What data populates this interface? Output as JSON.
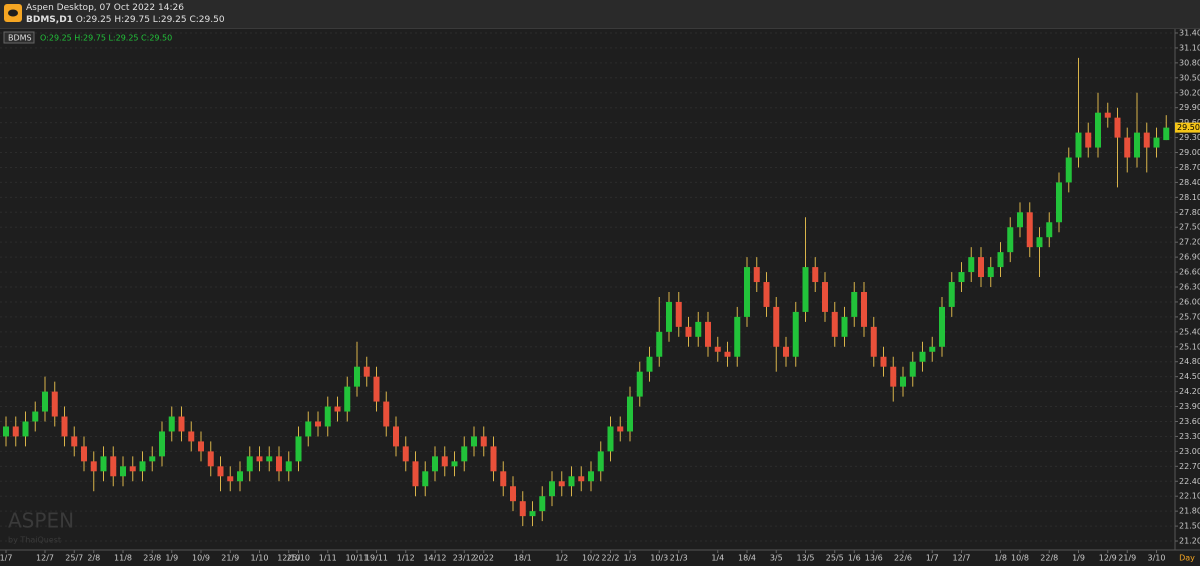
{
  "header": {
    "title": "Aspen Desktop, 07 Oct 2022 14:26",
    "symbol": "BDMS,D1",
    "ohlc": "O:29.25 H:29.75 L:29.25 C:29.50"
  },
  "chart_data": {
    "type": "candlestick",
    "legend": {
      "symbol": "BDMS",
      "ohlc": "O:29.25 H:29.75 L:29.25 C:29.50"
    },
    "watermark": [
      "ASPEN",
      "by ThaiQuest"
    ],
    "x_unit": "Day",
    "up_color": "#22c33a",
    "down_color": "#e9503a",
    "wick_color": "#d9b44a",
    "grid": true,
    "last_price": {
      "value": 29.5,
      "label": "29.50"
    },
    "categories": [
      "1/7",
      null,
      null,
      null,
      "12/7",
      null,
      null,
      "25/7",
      null,
      "2/8",
      null,
      null,
      "11/8",
      null,
      null,
      "23/8",
      null,
      "1/9",
      null,
      null,
      "10/9",
      null,
      null,
      "21/9",
      null,
      null,
      "1/10",
      null,
      null,
      "12/10",
      "25/10",
      null,
      null,
      "1/11",
      null,
      null,
      "10/11",
      null,
      "19/11",
      null,
      null,
      "1/12",
      null,
      null,
      "14/12",
      null,
      null,
      "23/12",
      null,
      "2022",
      null,
      null,
      null,
      "18/1",
      null,
      null,
      null,
      "1/2",
      null,
      null,
      "10/2",
      null,
      "22/2",
      null,
      "1/3",
      null,
      null,
      "10/3",
      null,
      "21/3",
      null,
      null,
      null,
      "1/4",
      null,
      null,
      "18/4",
      null,
      null,
      "3/5",
      null,
      null,
      "13/5",
      null,
      null,
      "25/5",
      null,
      "1/6",
      null,
      "13/6",
      null,
      null,
      "22/6",
      null,
      null,
      "1/7",
      null,
      null,
      "12/7",
      null,
      null,
      null,
      "1/8",
      null,
      "10/8",
      null,
      null,
      "22/8",
      null,
      null,
      "1/9",
      null,
      null,
      "12/9",
      null,
      "21/9",
      null,
      null,
      "3/10",
      null
    ],
    "open": [
      23.3,
      23.5,
      23.3,
      23.6,
      23.8,
      24.2,
      23.7,
      23.3,
      23.1,
      22.8,
      22.6,
      22.9,
      22.5,
      22.7,
      22.6,
      22.8,
      22.9,
      23.4,
      23.7,
      23.4,
      23.2,
      23.0,
      22.7,
      22.5,
      22.4,
      22.6,
      22.9,
      22.8,
      22.9,
      22.6,
      22.8,
      23.3,
      23.6,
      23.5,
      23.9,
      23.8,
      24.3,
      24.7,
      24.5,
      24.0,
      23.5,
      23.1,
      22.8,
      22.3,
      22.6,
      22.9,
      22.7,
      22.8,
      23.1,
      23.3,
      23.1,
      22.6,
      22.3,
      22.0,
      21.7,
      21.8,
      22.1,
      22.4,
      22.3,
      22.5,
      22.4,
      22.6,
      23.0,
      23.5,
      23.4,
      24.1,
      24.6,
      24.9,
      25.4,
      26.0,
      25.5,
      25.3,
      25.6,
      25.1,
      25.0,
      24.9,
      25.7,
      26.7,
      26.4,
      25.9,
      25.1,
      24.9,
      25.8,
      26.7,
      26.4,
      25.8,
      25.3,
      25.7,
      26.2,
      25.5,
      24.9,
      24.7,
      24.3,
      24.5,
      24.8,
      25.0,
      25.1,
      25.9,
      26.4,
      26.6,
      26.9,
      26.5,
      26.7,
      27.0,
      27.5,
      27.8,
      27.1,
      27.3,
      27.6,
      28.4,
      28.9,
      29.4,
      29.1,
      29.8,
      29.7,
      29.3,
      28.9,
      29.4,
      29.1,
      29.25
    ],
    "high": [
      23.7,
      23.7,
      23.8,
      24.0,
      24.5,
      24.4,
      23.9,
      23.5,
      23.3,
      23.0,
      23.1,
      23.1,
      22.9,
      22.9,
      23.0,
      23.1,
      23.6,
      23.9,
      23.9,
      23.6,
      23.4,
      23.2,
      22.9,
      22.7,
      22.8,
      23.1,
      23.1,
      23.1,
      23.1,
      23.0,
      23.5,
      23.8,
      23.8,
      24.1,
      24.1,
      24.5,
      25.2,
      24.9,
      24.7,
      24.2,
      23.7,
      23.3,
      23.0,
      22.8,
      23.1,
      23.1,
      23.0,
      23.3,
      23.5,
      23.5,
      23.3,
      22.8,
      22.5,
      22.2,
      22.0,
      22.3,
      22.6,
      22.6,
      22.7,
      22.7,
      22.8,
      23.2,
      23.7,
      23.7,
      24.3,
      24.8,
      25.1,
      26.1,
      26.2,
      26.2,
      25.7,
      25.8,
      25.8,
      25.3,
      25.2,
      25.9,
      26.9,
      26.9,
      26.6,
      26.1,
      25.3,
      26.0,
      27.7,
      26.9,
      26.6,
      26.0,
      25.9,
      26.4,
      26.4,
      25.7,
      25.1,
      24.9,
      24.7,
      25.0,
      25.2,
      25.3,
      26.1,
      26.6,
      26.8,
      27.1,
      27.1,
      26.9,
      27.2,
      27.7,
      28.0,
      28.0,
      27.5,
      27.8,
      28.6,
      29.1,
      30.9,
      29.6,
      30.2,
      30.0,
      29.9,
      29.5,
      30.2,
      29.6,
      29.5,
      29.75
    ],
    "low": [
      23.1,
      23.1,
      23.1,
      23.4,
      23.6,
      23.5,
      23.1,
      22.9,
      22.6,
      22.2,
      22.4,
      22.3,
      22.3,
      22.4,
      22.4,
      22.6,
      22.7,
      23.2,
      23.2,
      23.0,
      22.8,
      22.5,
      22.2,
      22.2,
      22.2,
      22.4,
      22.6,
      22.6,
      22.4,
      22.4,
      22.6,
      23.1,
      23.3,
      23.3,
      23.6,
      23.6,
      24.1,
      24.3,
      23.8,
      23.3,
      22.9,
      22.6,
      22.1,
      22.1,
      22.4,
      22.5,
      22.5,
      22.6,
      22.9,
      22.9,
      22.4,
      22.1,
      21.8,
      21.5,
      21.5,
      21.6,
      21.9,
      22.1,
      22.1,
      22.2,
      22.2,
      22.4,
      22.8,
      23.2,
      23.2,
      23.9,
      24.4,
      24.7,
      25.2,
      25.3,
      25.1,
      25.1,
      24.9,
      24.8,
      24.7,
      24.7,
      25.5,
      26.2,
      25.7,
      24.6,
      24.7,
      24.7,
      25.6,
      26.2,
      25.6,
      25.1,
      25.1,
      25.5,
      25.3,
      24.7,
      24.5,
      24.0,
      24.1,
      24.3,
      24.6,
      24.8,
      24.9,
      25.7,
      26.2,
      26.4,
      26.3,
      26.3,
      26.5,
      26.8,
      27.3,
      26.9,
      26.5,
      27.1,
      27.4,
      28.2,
      28.7,
      28.9,
      28.9,
      29.5,
      28.3,
      28.6,
      28.7,
      28.6,
      28.9,
      29.25
    ],
    "close": [
      23.5,
      23.3,
      23.6,
      23.8,
      24.2,
      23.7,
      23.3,
      23.1,
      22.8,
      22.6,
      22.9,
      22.5,
      22.7,
      22.6,
      22.8,
      22.9,
      23.4,
      23.7,
      23.4,
      23.2,
      23.0,
      22.7,
      22.5,
      22.4,
      22.6,
      22.9,
      22.8,
      22.9,
      22.6,
      22.8,
      23.3,
      23.6,
      23.5,
      23.9,
      23.8,
      24.3,
      24.7,
      24.5,
      24.0,
      23.5,
      23.1,
      22.8,
      22.3,
      22.6,
      22.9,
      22.7,
      22.8,
      23.1,
      23.3,
      23.1,
      22.6,
      22.3,
      22.0,
      21.7,
      21.8,
      22.1,
      22.4,
      22.3,
      22.5,
      22.4,
      22.6,
      23.0,
      23.5,
      23.4,
      24.1,
      24.6,
      24.9,
      25.4,
      26.0,
      25.5,
      25.3,
      25.6,
      25.1,
      25.0,
      24.9,
      25.7,
      26.7,
      26.4,
      25.9,
      25.1,
      24.9,
      25.8,
      26.7,
      26.4,
      25.8,
      25.3,
      25.7,
      26.2,
      25.5,
      24.9,
      24.7,
      24.3,
      24.5,
      24.8,
      25.0,
      25.1,
      25.9,
      26.4,
      26.6,
      26.9,
      26.5,
      26.7,
      27.0,
      27.5,
      27.8,
      27.1,
      27.3,
      27.6,
      28.4,
      28.9,
      29.4,
      29.1,
      29.8,
      29.7,
      29.3,
      28.9,
      29.4,
      29.1,
      29.3,
      29.5
    ],
    "ylim": [
      21.0,
      31.5
    ],
    "yticks": [
      {
        "value": 21.2,
        "label": "21.20"
      },
      {
        "value": 21.5,
        "label": "21.50"
      },
      {
        "value": 21.8,
        "label": "21.80"
      },
      {
        "value": 22.1,
        "label": "22.10"
      },
      {
        "value": 22.4,
        "label": "22.40"
      },
      {
        "value": 22.7,
        "label": "22.70"
      },
      {
        "value": 23.0,
        "label": "23.00"
      },
      {
        "value": 23.3,
        "label": "23.30"
      },
      {
        "value": 23.6,
        "label": "23.60"
      },
      {
        "value": 23.9,
        "label": "23.90"
      },
      {
        "value": 24.2,
        "label": "24.20"
      },
      {
        "value": 24.5,
        "label": "24.50"
      },
      {
        "value": 24.8,
        "label": "24.80"
      },
      {
        "value": 25.1,
        "label": "25.10"
      },
      {
        "value": 25.4,
        "label": "25.40"
      },
      {
        "value": 25.7,
        "label": "25.70"
      },
      {
        "value": 26.0,
        "label": "26.00"
      },
      {
        "value": 26.3,
        "label": "26.30"
      },
      {
        "value": 26.6,
        "label": "26.60"
      },
      {
        "value": 26.9,
        "label": "26.90"
      },
      {
        "value": 27.2,
        "label": "27.20"
      },
      {
        "value": 27.5,
        "label": "27.50"
      },
      {
        "value": 27.8,
        "label": "27.80"
      },
      {
        "value": 28.1,
        "label": "28.10"
      },
      {
        "value": 28.4,
        "label": "28.40"
      },
      {
        "value": 28.7,
        "label": "28.70"
      },
      {
        "value": 29.0,
        "label": "29.00"
      },
      {
        "value": 29.3,
        "label": "29.30"
      },
      {
        "value": 29.6,
        "label": "29.60"
      },
      {
        "value": 29.9,
        "label": "29.90"
      },
      {
        "value": 30.2,
        "label": "30.20"
      },
      {
        "value": 30.5,
        "label": "30.50"
      },
      {
        "value": 30.8,
        "label": "30.80"
      },
      {
        "value": 31.1,
        "label": "31.10"
      },
      {
        "value": 31.4,
        "label": "31.40"
      }
    ]
  }
}
